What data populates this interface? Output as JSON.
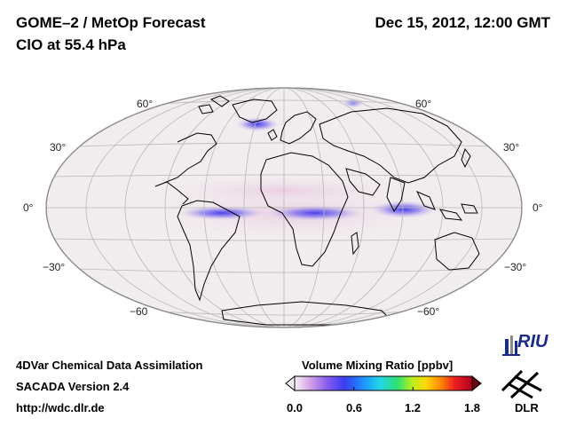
{
  "header": {
    "title_line1": "GOME–2 / MetOp Forecast",
    "title_line2": "ClO at 55.4 hPa",
    "date": "Dec 15, 2012, 12:00 GMT"
  },
  "map": {
    "latitude_labels_left": [
      "60°",
      "30°",
      "0°",
      "−30°",
      "−60"
    ],
    "latitude_labels_right": [
      "60°",
      "30°",
      "0°",
      "−30°",
      "−60°"
    ]
  },
  "footer": {
    "line1": "4DVar Chemical Data Assimilation",
    "line2": "SACADA Version 2.4",
    "line3": "http://wdc.dlr.de"
  },
  "colorbar": {
    "title": "Volume Mixing Ratio [ppbv]",
    "ticks": [
      "0.0",
      "0.6",
      "1.2",
      "1.8"
    ],
    "range": [
      0.0,
      1.8
    ]
  },
  "logos": {
    "riu": "RIU",
    "dlr": "DLR"
  },
  "colors": {
    "ocean_land_bg": "#f1ecee",
    "coastline": "#000000",
    "graticule": "#b8b8b8"
  }
}
